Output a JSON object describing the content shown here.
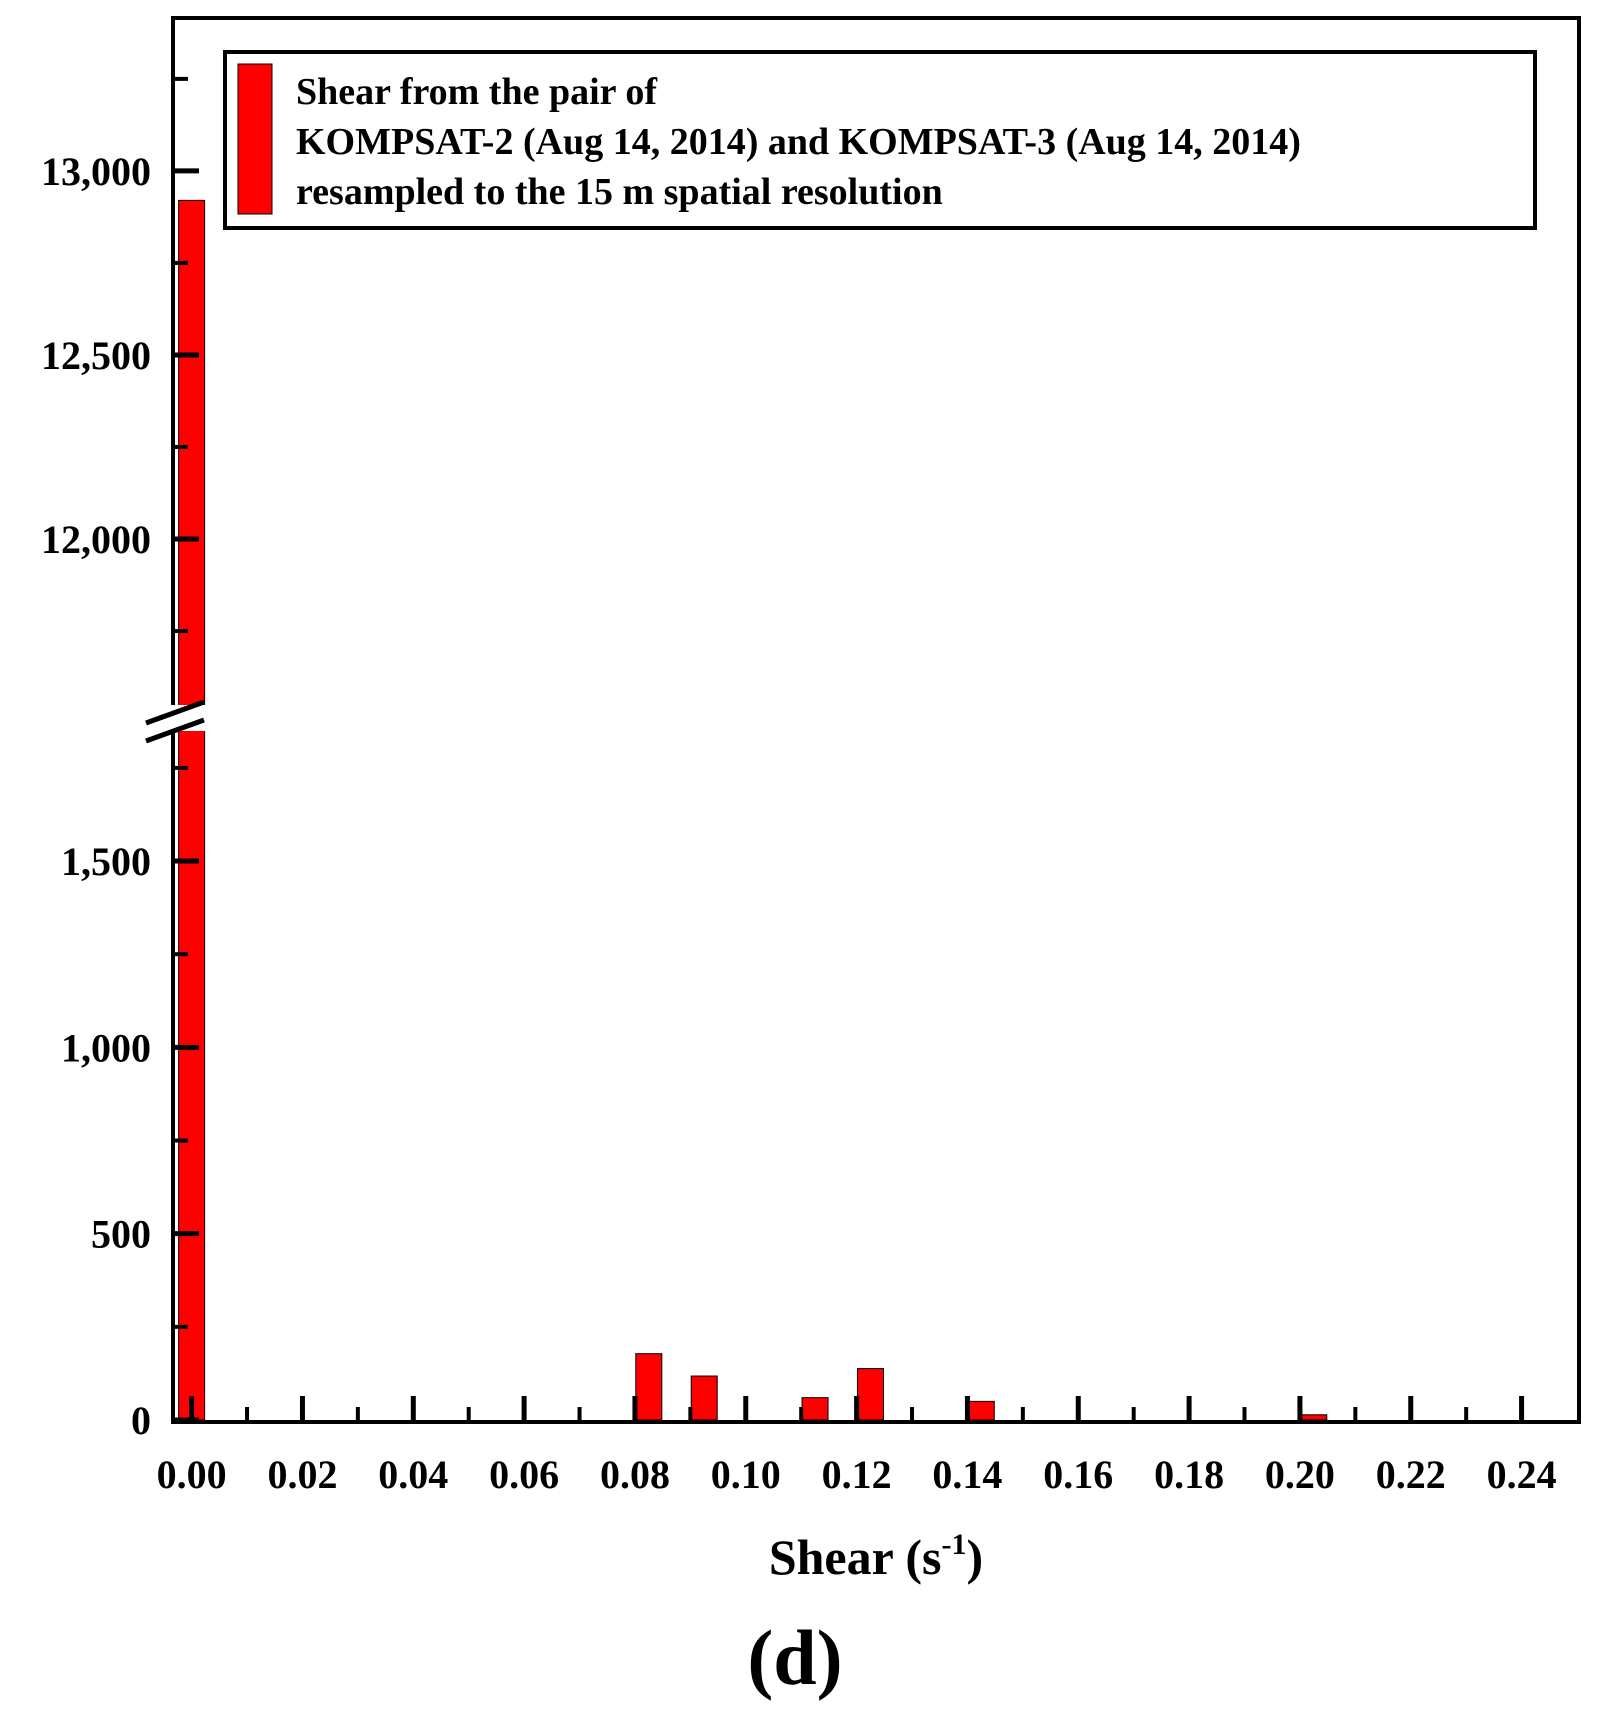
{
  "chart_data": {
    "type": "bar",
    "xlabel": "Shear (s",
    "xlabel_sup": "-1",
    "xlabel_close": ")",
    "panel_label": "(d)",
    "x_ticks": [
      "0.00",
      "0.02",
      "0.04",
      "0.06",
      "0.08",
      "0.10",
      "0.12",
      "0.14",
      "0.16",
      "0.18",
      "0.20",
      "0.22",
      "0.24"
    ],
    "y_ticks_lower": [
      "0",
      "500",
      "1,000",
      "1,500"
    ],
    "y_ticks_upper": [
      "12,000",
      "12,500",
      "13,000"
    ],
    "xlim": [
      -0.003,
      0.25
    ],
    "y_axis_break": {
      "lower_range": [
        0,
        1900
      ],
      "upper_range": [
        11530,
        13410
      ]
    },
    "legend": {
      "placement": "top",
      "lines": [
        "Shear from the pair of",
        "KOMPSAT-2 (Aug 14, 2014) and KOMPSAT-3 (Aug 14, 2014)",
        "resampled to the 15 m spatial resolution"
      ]
    },
    "series": [
      {
        "color": "#ff0000",
        "x": [
          0.0,
          0.0825,
          0.0925,
          0.1125,
          0.1225,
          0.1425,
          0.2025
        ],
        "values": [
          12920,
          178,
          118,
          60,
          138,
          50,
          14
        ]
      }
    ]
  }
}
